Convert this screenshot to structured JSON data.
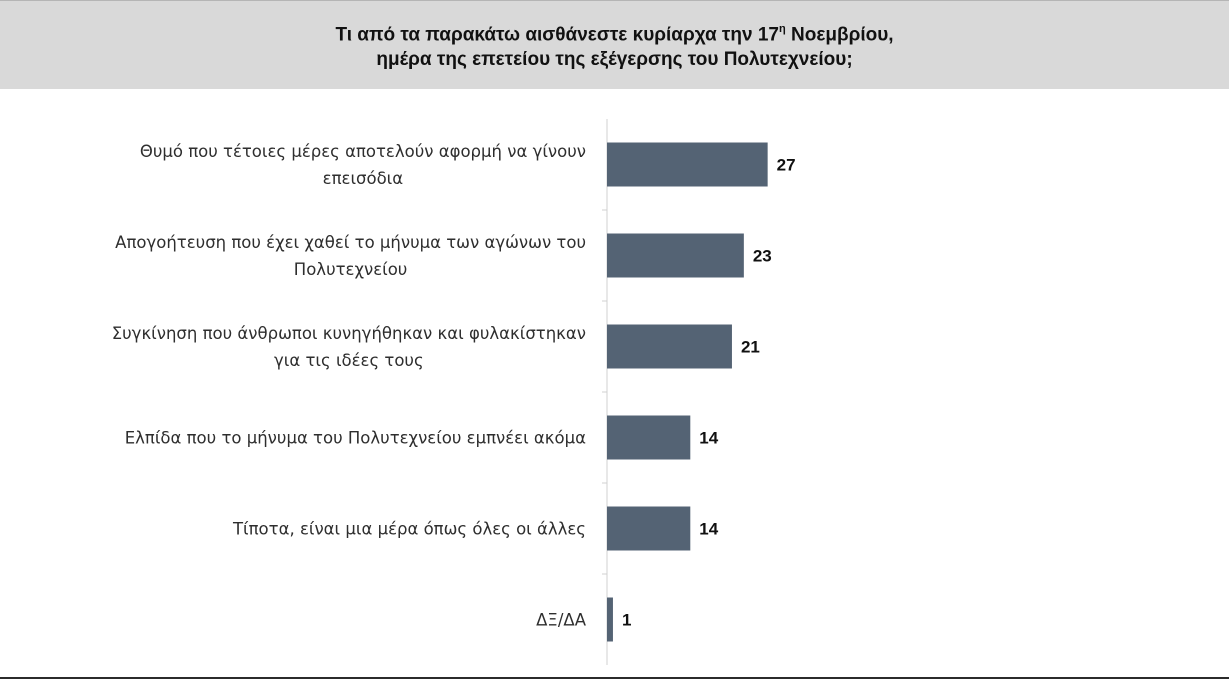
{
  "title": {
    "line1_main": "Τι από τα παρακάτω αισθάνεστε κυρίαρχα την 17",
    "line1_sup": "η",
    "line1_end": " Νοεμβρίου,",
    "line2": "ημέρα της επετείου της εξέγερσης του Πολυτεχνείου;"
  },
  "colors": {
    "bar": "#546374",
    "title_band": "#d9d9d9",
    "axis": "#d0d0d0"
  },
  "chart_data": {
    "type": "bar",
    "orientation": "horizontal",
    "categories": [
      [
        "Θυμό που τέτοιες μέρες αποτελούν αφορμή να γίνουν",
        "επεισόδια"
      ],
      [
        "Απογοήτευση που έχει χαθεί το μήνυμα των αγώνων του",
        "Πολυτεχνείου"
      ],
      [
        "Συγκίνηση που άνθρωποι κυνηγήθηκαν και φυλακίστηκαν",
        "για τις ιδέες τους"
      ],
      [
        "Ελπίδα που το μήνυμα του Πολυτεχνείου εμπνέει ακόμα"
      ],
      [
        "Τίποτα, είναι μια μέρα όπως όλες οι άλλες"
      ],
      [
        "ΔΞ/ΔΑ"
      ]
    ],
    "values": [
      27,
      23,
      21,
      14,
      14,
      1
    ],
    "data_labels": [
      "27",
      "23",
      "21",
      "14",
      "14",
      "1"
    ],
    "xlim": [
      0,
      100
    ],
    "grid": false,
    "legend": "none"
  }
}
